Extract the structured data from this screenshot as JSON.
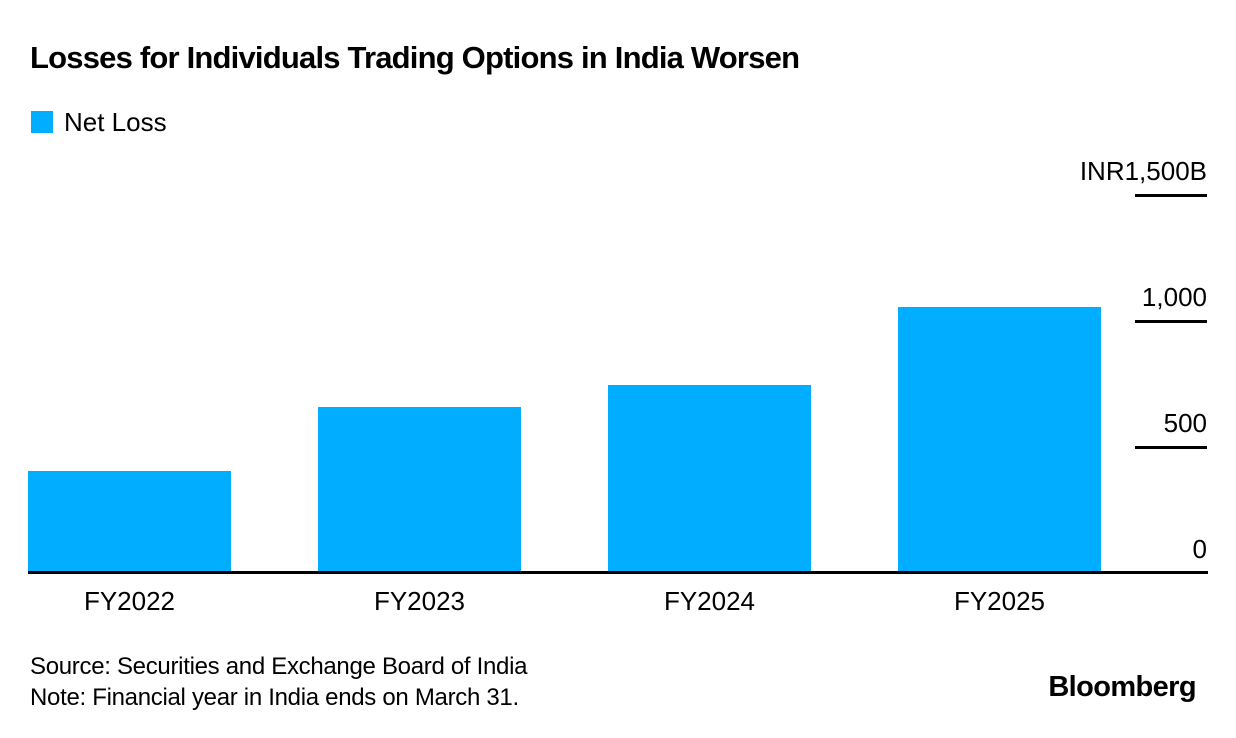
{
  "title": "Losses for Individuals Trading Options in India Worsen",
  "legend": {
    "label": "Net Loss",
    "color": "#00ADFF"
  },
  "chart_data": {
    "type": "bar",
    "title": "Losses for Individuals Trading Options in India Worsen",
    "series_name": "Net Loss",
    "categories": [
      "FY2022",
      "FY2023",
      "FY2024",
      "FY2025"
    ],
    "values": [
      405,
      657,
      748,
      1056
    ],
    "unit": "INR billions",
    "ylim": [
      0,
      1500
    ],
    "yticks": [
      {
        "value": 1500,
        "label": "INR1,500B"
      },
      {
        "value": 1000,
        "label": "1,000"
      },
      {
        "value": 500,
        "label": "500"
      },
      {
        "value": 0,
        "label": "0"
      }
    ],
    "xlabel": "",
    "ylabel": "",
    "grid": false,
    "axis_side": "right",
    "legend_position": "top-left"
  },
  "footer": {
    "source": "Source: Securities and Exchange Board of India",
    "note": "Note: Financial year in India ends on March 31.",
    "brand": "Bloomberg"
  },
  "colors": {
    "bar": "#00ADFF",
    "axis": "#000000",
    "text": "#000000",
    "background": "#FFFFFF"
  }
}
